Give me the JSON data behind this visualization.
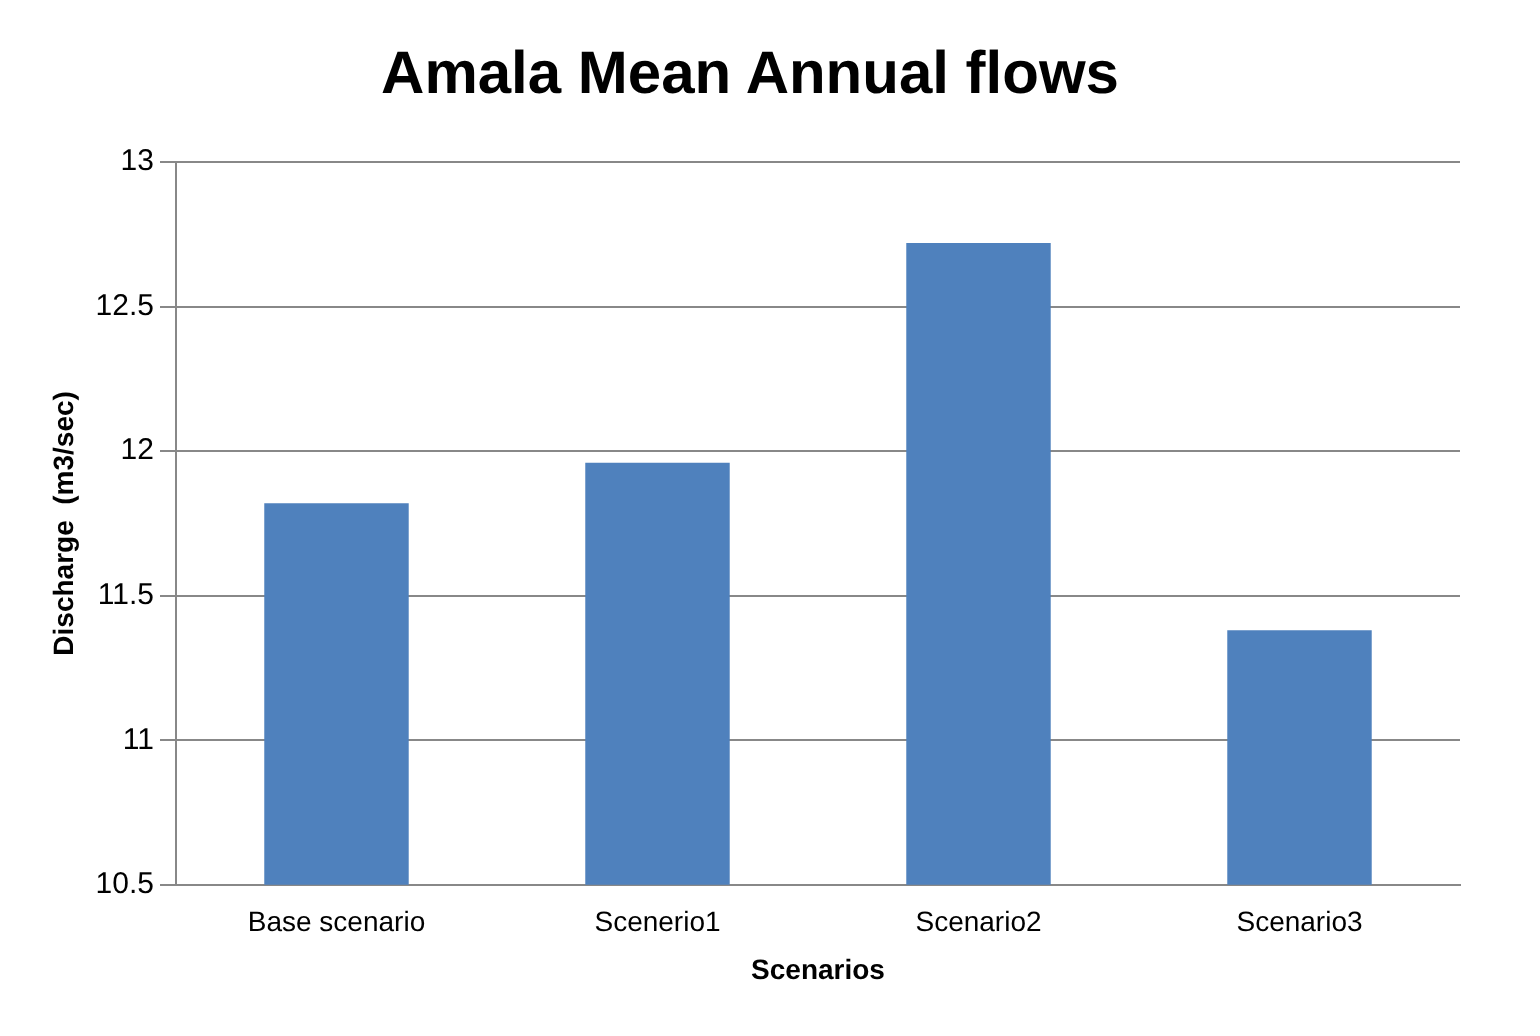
{
  "chart_data": {
    "type": "bar",
    "title": "Amala Mean Annual flows",
    "xlabel": "Scenarios",
    "ylabel": "Discharge  (m3/sec)",
    "categories": [
      "Base scenario",
      "Scenerio1",
      "Scenario2",
      "Scenario3"
    ],
    "values": [
      11.82,
      11.96,
      12.72,
      11.38
    ],
    "color": "#4f81bd",
    "ylim": [
      10.5,
      13
    ],
    "yticks": [
      10.5,
      11,
      11.5,
      12,
      12.5,
      13
    ],
    "grid": "y",
    "legend": false
  }
}
